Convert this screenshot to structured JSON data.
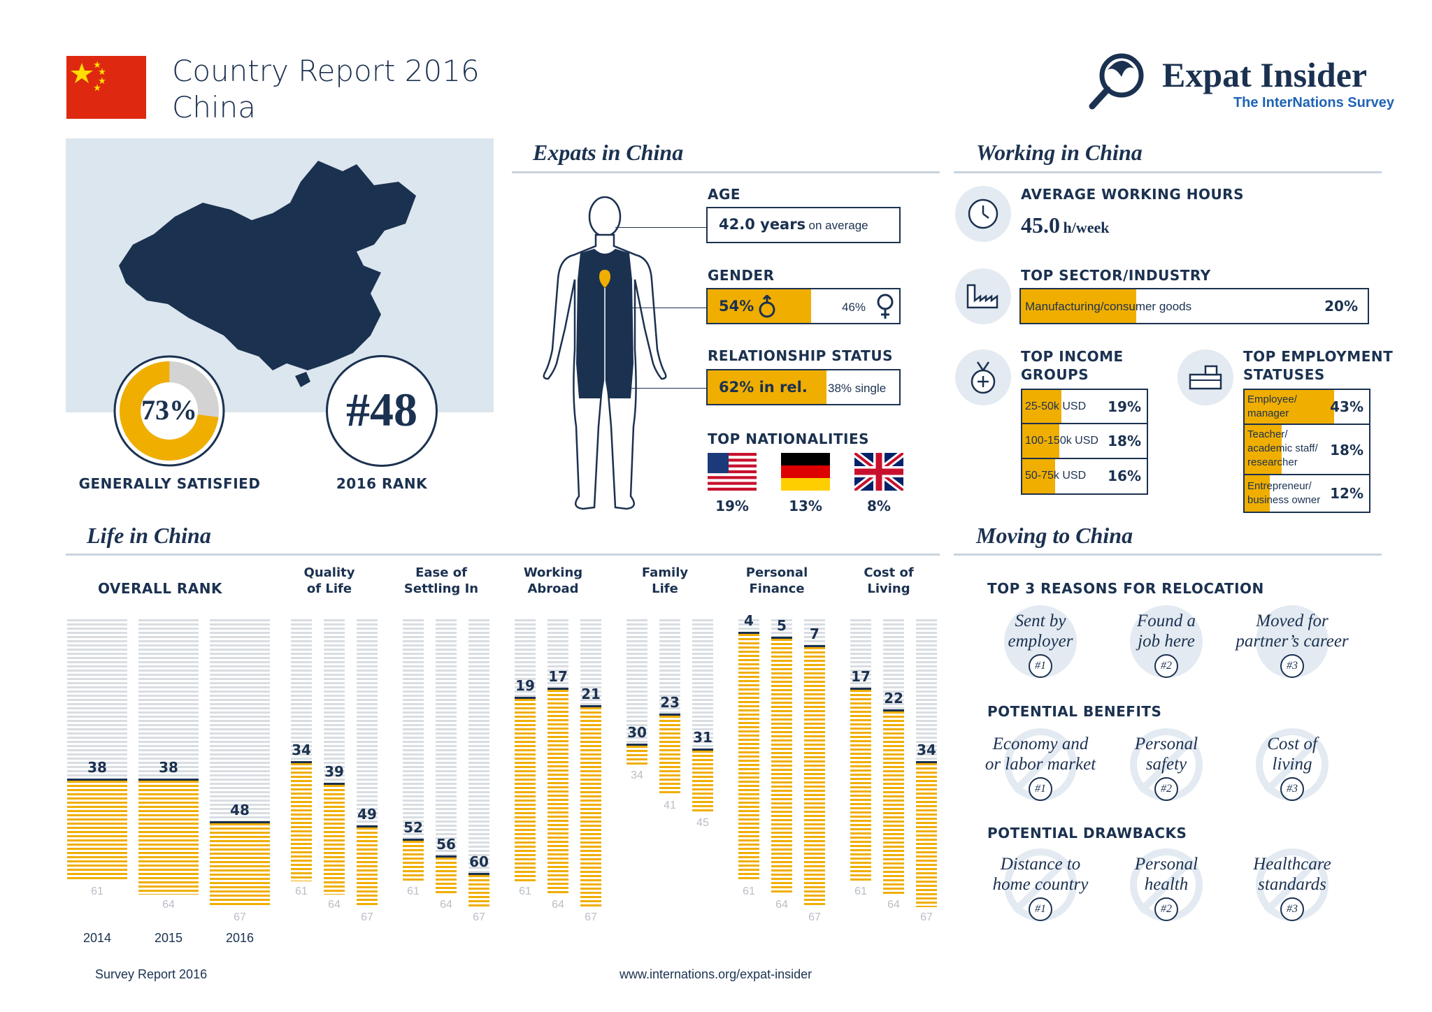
{
  "header": {
    "title_line1": "Country Report 2016",
    "title_line2": "China",
    "logo_title": "Expat Insider",
    "logo_subtitle": "The InterNations Survey"
  },
  "colors": {
    "navy": "#1b3150",
    "accent": "#f0ae00",
    "light": "#dce6ef",
    "flag_red": "#de2910"
  },
  "overview": {
    "satisfied_percent": 73,
    "satisfied_label_value": "73%",
    "satisfied_caption": "GENERALLY SATISFIED",
    "rank_value": "#48",
    "rank_caption": "2016 RANK"
  },
  "expats": {
    "title": "Expats in China",
    "age_label": "AGE",
    "age_value": "42.0 years",
    "age_suffix": "on average",
    "gender_label": "GENDER",
    "gender_male": "54%",
    "gender_male_value": 54,
    "gender_female": "46%",
    "relationship_label": "RELATIONSHIP STATUS",
    "rel_in": "62% in rel.",
    "rel_in_value": 62,
    "rel_single": "38% single",
    "nationalities_label": "TOP NATIONALITIES",
    "nationalities": [
      {
        "country": "United States",
        "percent": "19%"
      },
      {
        "country": "Germany",
        "percent": "13%"
      },
      {
        "country": "United Kingdom",
        "percent": "8%"
      }
    ]
  },
  "working": {
    "title": "Working in China",
    "hours_label": "AVERAGE WORKING HOURS",
    "hours_value": "45.0",
    "hours_unit": "h/week",
    "sector_label": "TOP SECTOR/INDUSTRY",
    "sector_name": "Manufacturing/consumer goods",
    "sector_percent": "20%",
    "sector_value": 20,
    "income_label_1": "TOP INCOME",
    "income_label_2": "GROUPS",
    "income": [
      {
        "label": "25-50k USD",
        "percent": "19%",
        "value": 19
      },
      {
        "label": "100-150k USD",
        "percent": "18%",
        "value": 18
      },
      {
        "label": "50-75k USD",
        "percent": "16%",
        "value": 16
      }
    ],
    "employment_label_1": "TOP EMPLOYMENT",
    "employment_label_2": "STATUSES",
    "employment": [
      {
        "line1": "Employee/",
        "line2": "manager",
        "line3": "",
        "percent": "43%",
        "value": 43
      },
      {
        "line1": "Teacher/",
        "line2": "academic staff/",
        "line3": "researcher",
        "percent": "18%",
        "value": 18
      },
      {
        "line1": "Entrepreneur/",
        "line2": "business owner",
        "line3": "",
        "percent": "12%",
        "value": 12
      }
    ]
  },
  "life": {
    "title": "Life in China",
    "overall_label": "OVERALL RANK",
    "overall": [
      {
        "year": "2014",
        "rank": "38",
        "total": "61",
        "rank_value": 38,
        "total_value": 61
      },
      {
        "year": "2015",
        "rank": "38",
        "total": "64",
        "rank_value": 38,
        "total_value": 64
      },
      {
        "year": "2016",
        "rank": "48",
        "total": "67",
        "rank_value": 48,
        "total_value": 67
      }
    ],
    "categories": [
      {
        "label1": "Quality",
        "label2": "of Life",
        "ranks": [
          {
            "rank": "34",
            "total": "61",
            "rank_value": 34,
            "total_value": 61
          },
          {
            "rank": "39",
            "total": "64",
            "rank_value": 39,
            "total_value": 64
          },
          {
            "rank": "49",
            "total": "67",
            "rank_value": 49,
            "total_value": 67
          }
        ]
      },
      {
        "label1": "Ease of",
        "label2": "Settling In",
        "ranks": [
          {
            "rank": "52",
            "total": "61",
            "rank_value": 52,
            "total_value": 61
          },
          {
            "rank": "56",
            "total": "64",
            "rank_value": 56,
            "total_value": 64
          },
          {
            "rank": "60",
            "total": "67",
            "rank_value": 60,
            "total_value": 67
          }
        ]
      },
      {
        "label1": "Working",
        "label2": "Abroad",
        "ranks": [
          {
            "rank": "19",
            "total": "61",
            "rank_value": 19,
            "total_value": 61
          },
          {
            "rank": "17",
            "total": "64",
            "rank_value": 17,
            "total_value": 64
          },
          {
            "rank": "21",
            "total": "67",
            "rank_value": 21,
            "total_value": 67
          }
        ]
      },
      {
        "label1": "Family",
        "label2": "Life",
        "ranks": [
          {
            "rank": "30",
            "total": "34",
            "rank_value": 30,
            "total_value": 34
          },
          {
            "rank": "23",
            "total": "41",
            "rank_value": 23,
            "total_value": 41
          },
          {
            "rank": "31",
            "total": "45",
            "rank_value": 31,
            "total_value": 45
          }
        ]
      },
      {
        "label1": "Personal",
        "label2": "Finance",
        "ranks": [
          {
            "rank": "4",
            "total": "61",
            "rank_value": 4,
            "total_value": 61
          },
          {
            "rank": "5",
            "total": "64",
            "rank_value": 5,
            "total_value": 64
          },
          {
            "rank": "7",
            "total": "67",
            "rank_value": 7,
            "total_value": 67
          }
        ]
      },
      {
        "label1": "Cost of",
        "label2": "Living",
        "ranks": [
          {
            "rank": "17",
            "total": "61",
            "rank_value": 17,
            "total_value": 61
          },
          {
            "rank": "22",
            "total": "64",
            "rank_value": 22,
            "total_value": 64
          },
          {
            "rank": "34",
            "total": "67",
            "rank_value": 34,
            "total_value": 67
          }
        ]
      }
    ]
  },
  "moving": {
    "title": "Moving to China",
    "reasons_label": "TOP 3 REASONS FOR RELOCATION",
    "reasons": [
      {
        "line1": "Sent by",
        "line2": "employer",
        "badge": "#1"
      },
      {
        "line1": "Found a",
        "line2": "job here",
        "badge": "#2"
      },
      {
        "line1": "Moved for",
        "line2": "partner’s career",
        "badge": "#3"
      }
    ],
    "benefits_label": "POTENTIAL BENEFITS",
    "benefits": [
      {
        "line1": "Economy and",
        "line2": "or labor market",
        "badge": "#1"
      },
      {
        "line1": "Personal",
        "line2": "safety",
        "badge": "#2"
      },
      {
        "line1": "Cost of",
        "line2": "living",
        "badge": "#3"
      }
    ],
    "drawbacks_label": "POTENTIAL DRAWBACKS",
    "drawbacks": [
      {
        "line1": "Distance to",
        "line2": "home country",
        "badge": "#1"
      },
      {
        "line1": "Personal",
        "line2": "health",
        "badge": "#2"
      },
      {
        "line1": "Healthcare",
        "line2": "standards",
        "badge": "#3"
      }
    ]
  },
  "footer": {
    "left": "Survey Report 2016",
    "center": "www.internations.org/expat-insider"
  }
}
